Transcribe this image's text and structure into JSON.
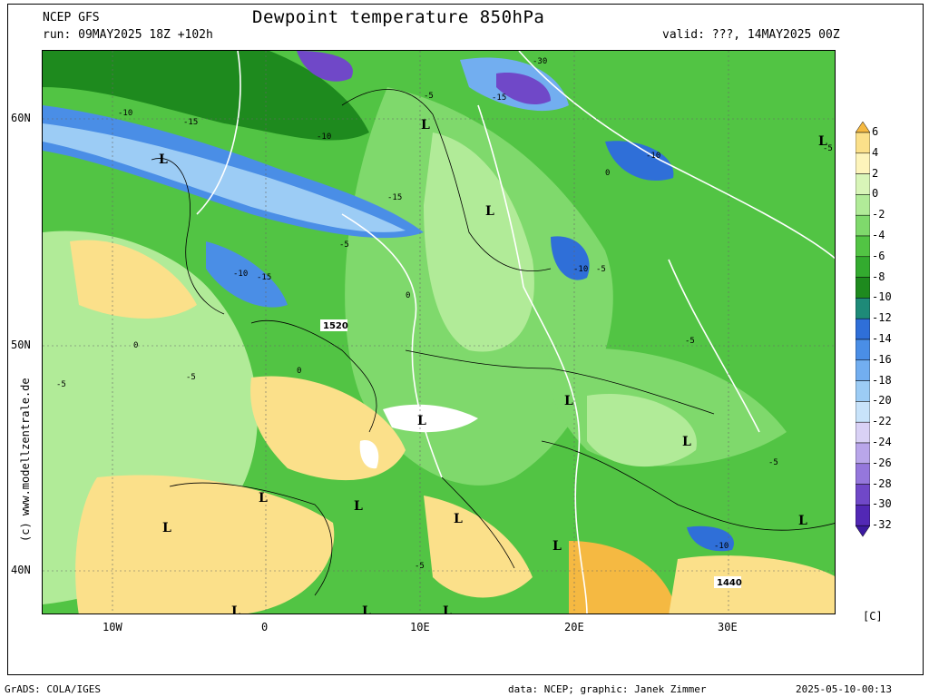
{
  "header": {
    "model": "NCEP GFS",
    "run": "run: 09MAY2025 18Z +102h",
    "title": "Dewpoint temperature 850hPa",
    "valid": "valid: ???, 14MAY2025 00Z"
  },
  "axes": {
    "lat_labels": [
      "60N",
      "50N",
      "40N"
    ],
    "lon_labels": [
      "10W",
      "0",
      "10E",
      "20E",
      "30E"
    ]
  },
  "side_credit": "(c) www.modellzentrale.de",
  "colorbar": {
    "labels": [
      "6",
      "4",
      "2",
      "0",
      "-2",
      "-4",
      "-6",
      "-8",
      "-10",
      "-12",
      "-14",
      "-16",
      "-18",
      "-20",
      "-22",
      "-24",
      "-26",
      "-28",
      "-30",
      "-32"
    ],
    "colors": [
      "#f5b942",
      "#fbe08a",
      "#fdf4bb",
      "#d8f5b8",
      "#b1eb98",
      "#7fd96c",
      "#52c444",
      "#33ab2f",
      "#1e8a1e",
      "#1e8a78",
      "#2f6fd8",
      "#4a8ee6",
      "#72aef0",
      "#9cccf5",
      "#c8e3fa",
      "#d9d1f5",
      "#b9a6ea",
      "#9577dc",
      "#7048c8",
      "#5228b5",
      "#3c1aa0"
    ],
    "unit": "[C]"
  },
  "map_labels": {
    "pressure": [
      "1520",
      "1440"
    ],
    "lows": [
      "L"
    ],
    "contours": [
      "-10",
      "-15",
      "-5",
      "0",
      "-30"
    ]
  },
  "footer": {
    "left": "GrADS: COLA/IGES",
    "center": "data: NCEP; graphic: Janek Zimmer",
    "right": "2025-05-10-00:13"
  }
}
